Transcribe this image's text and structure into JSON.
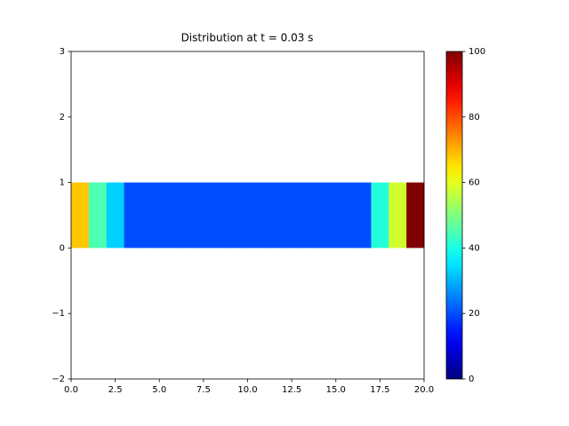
{
  "chart_data": {
    "type": "heatmap",
    "title": "Distribution at t = 0.03 s",
    "colormap": "jet",
    "x_edges": [
      0,
      1,
      2,
      3,
      4,
      5,
      6,
      7,
      8,
      9,
      10,
      11,
      12,
      13,
      14,
      15,
      16,
      17,
      18,
      19,
      20
    ],
    "y_edges": [
      0,
      1
    ],
    "values": [
      68,
      45,
      33,
      20,
      20,
      20,
      20,
      20,
      20,
      20,
      20,
      20,
      20,
      20,
      20,
      20,
      20,
      41,
      58,
      100
    ],
    "xlim": [
      0,
      20
    ],
    "xticks": [
      {
        "value": 0,
        "label": "0.0"
      },
      {
        "value": 2.5,
        "label": "2.5"
      },
      {
        "value": 5,
        "label": "5.0"
      },
      {
        "value": 7.5,
        "label": "7.5"
      },
      {
        "value": 10,
        "label": "10.0"
      },
      {
        "value": 12.5,
        "label": "12.5"
      },
      {
        "value": 15,
        "label": "15.0"
      },
      {
        "value": 17.5,
        "label": "17.5"
      },
      {
        "value": 20,
        "label": "20.0"
      }
    ],
    "ylim": [
      -2,
      3
    ],
    "yticks": [
      {
        "value": -2,
        "label": "−2"
      },
      {
        "value": -1,
        "label": "−1"
      },
      0,
      1,
      2,
      3
    ],
    "clim": [
      0,
      100
    ],
    "cticks": [
      0,
      20,
      40,
      60,
      80,
      100
    ]
  }
}
